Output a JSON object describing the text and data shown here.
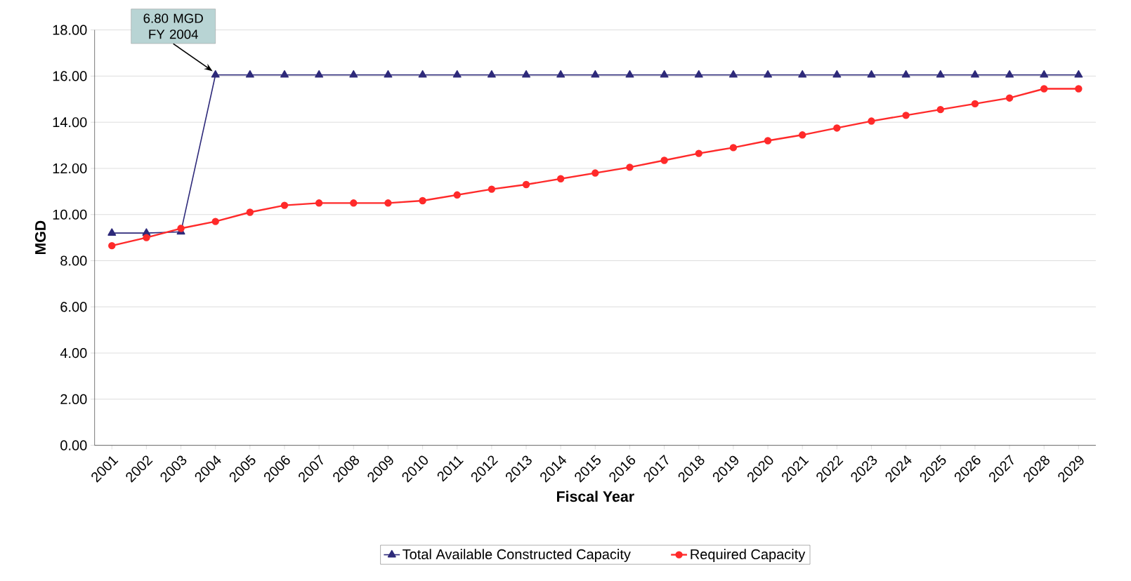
{
  "chart_data": {
    "type": "line",
    "xlabel": "Fiscal Year",
    "ylabel": "MGD",
    "categories": [
      "2001",
      "2002",
      "2003",
      "2004",
      "2005",
      "2006",
      "2007",
      "2008",
      "2009",
      "2010",
      "2011",
      "2012",
      "2013",
      "2014",
      "2015",
      "2016",
      "2017",
      "2018",
      "2019",
      "2020",
      "2021",
      "2022",
      "2023",
      "2024",
      "2025",
      "2026",
      "2027",
      "2028",
      "2029"
    ],
    "series": [
      {
        "name": "Total Available Constructed Capacity",
        "color": "#2e2a7a",
        "marker": "triangle",
        "values": [
          9.2,
          9.2,
          9.25,
          16.05,
          16.05,
          16.05,
          16.05,
          16.05,
          16.05,
          16.05,
          16.05,
          16.05,
          16.05,
          16.05,
          16.05,
          16.05,
          16.05,
          16.05,
          16.05,
          16.05,
          16.05,
          16.05,
          16.05,
          16.05,
          16.05,
          16.05,
          16.05,
          16.05,
          16.05
        ]
      },
      {
        "name": "Required Capacity",
        "color": "#ff2a2a",
        "marker": "circle",
        "values": [
          8.65,
          9.0,
          9.4,
          9.7,
          10.1,
          10.4,
          10.5,
          10.5,
          10.5,
          10.6,
          10.85,
          11.1,
          11.3,
          11.55,
          11.8,
          12.05,
          12.35,
          12.65,
          12.9,
          13.2,
          13.45,
          13.75,
          14.05,
          14.3,
          14.55,
          14.8,
          15.05,
          15.45,
          15.45
        ]
      }
    ],
    "ylim": [
      0,
      18
    ],
    "yticks": [
      {
        "value": 0,
        "label": "0.00"
      },
      {
        "value": 2,
        "label": "2.00"
      },
      {
        "value": 4,
        "label": "4.00"
      },
      {
        "value": 6,
        "label": "6.00"
      },
      {
        "value": 8,
        "label": "8.00"
      },
      {
        "value": 10,
        "label": "10.00"
      },
      {
        "value": 12,
        "label": "12.00"
      },
      {
        "value": 14,
        "label": "14.00"
      },
      {
        "value": 16,
        "label": "16.00"
      },
      {
        "value": 18,
        "label": "18.00"
      }
    ],
    "grid": "y",
    "legend": "bottom",
    "annotations": [
      {
        "text": "6.80 MGD FY 2004",
        "x": "2004",
        "y": 16.05
      }
    ]
  }
}
